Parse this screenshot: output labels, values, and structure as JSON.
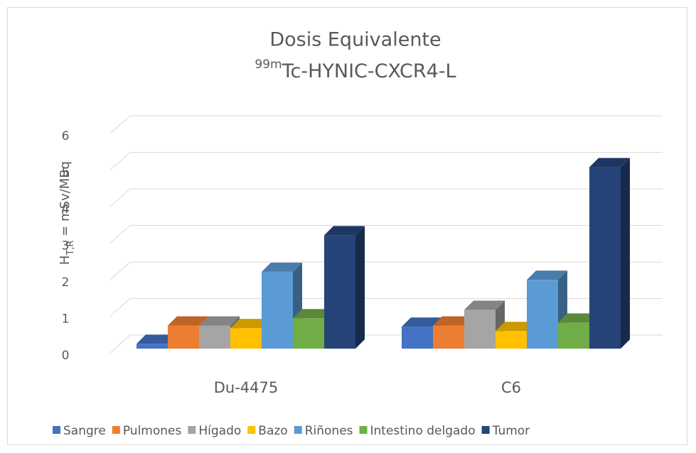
{
  "chart_data": {
    "type": "bar3d",
    "title": "Dosis Equivalente",
    "subtitle": {
      "sup": "99m",
      "text": "Tc-HYNIC-CXCR4-L"
    },
    "y_label": {
      "main": "H",
      "sub": "T,R",
      "rest": " = mSv/MBq"
    },
    "categories": [
      "Du-4475",
      "C6"
    ],
    "series": [
      {
        "name": "Sangre",
        "color": "#4472c4",
        "values": [
          0.13,
          0.6
        ]
      },
      {
        "name": "Pulmones",
        "color": "#ed7d31",
        "values": [
          0.63,
          0.63
        ]
      },
      {
        "name": "Hígado",
        "color": "#a5a5a5",
        "values": [
          0.63,
          1.06
        ]
      },
      {
        "name": "Bazo",
        "color": "#ffc000",
        "values": [
          0.56,
          0.48
        ]
      },
      {
        "name": "Riñones",
        "color": "#5b9bd5",
        "values": [
          2.1,
          1.88
        ]
      },
      {
        "name": "Intestino delgado",
        "color": "#70ad47",
        "values": [
          0.83,
          0.71
        ]
      },
      {
        "name": "Tumor",
        "color": "#264478",
        "values": [
          3.1,
          4.96
        ]
      }
    ],
    "ylim": [
      0,
      6
    ],
    "yticks": [
      0,
      1,
      2,
      3,
      4,
      5,
      6
    ],
    "grid": true,
    "legend": "bottom"
  }
}
